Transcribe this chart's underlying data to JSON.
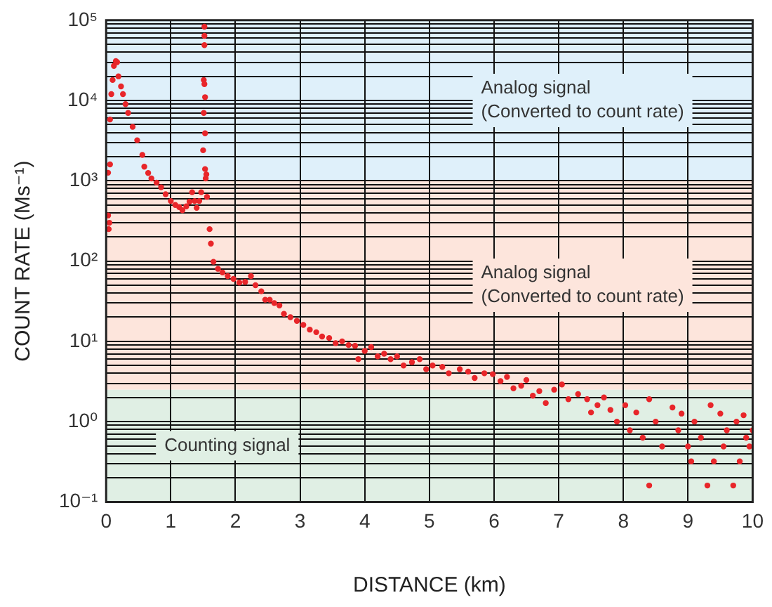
{
  "chart_data": {
    "type": "scatter",
    "xlabel": "DISTANCE (km)",
    "ylabel": "COUNT RATE (Ms⁻¹)",
    "log": "y",
    "grid": true,
    "legend": false,
    "marker": "circle",
    "xlim": [
      0,
      10
    ],
    "xticks": [
      0,
      1,
      2,
      3,
      4,
      5,
      6,
      7,
      8,
      9,
      10
    ],
    "ylim": [
      0.1,
      100000
    ],
    "yticks": [
      {
        "value": 0.1,
        "label": "10⁻¹"
      },
      {
        "value": 0.2,
        "label": null
      },
      {
        "value": 0.3,
        "label": null
      },
      {
        "value": 0.4,
        "label": null
      },
      {
        "value": 0.5,
        "label": null
      },
      {
        "value": 0.6,
        "label": null
      },
      {
        "value": 0.7,
        "label": null
      },
      {
        "value": 0.8,
        "label": null
      },
      {
        "value": 0.9,
        "label": null
      },
      {
        "value": 1,
        "label": "10⁰"
      },
      {
        "value": 2,
        "label": null
      },
      {
        "value": 3,
        "label": null
      },
      {
        "value": 4,
        "label": null
      },
      {
        "value": 5,
        "label": null
      },
      {
        "value": 6,
        "label": null
      },
      {
        "value": 7,
        "label": null
      },
      {
        "value": 8,
        "label": null
      },
      {
        "value": 9,
        "label": null
      },
      {
        "value": 10,
        "label": "10¹"
      },
      {
        "value": 20,
        "label": null
      },
      {
        "value": 30,
        "label": null
      },
      {
        "value": 40,
        "label": null
      },
      {
        "value": 50,
        "label": null
      },
      {
        "value": 60,
        "label": null
      },
      {
        "value": 70,
        "label": null
      },
      {
        "value": 80,
        "label": null
      },
      {
        "value": 90,
        "label": null
      },
      {
        "value": 100,
        "label": "10²"
      },
      {
        "value": 200,
        "label": null
      },
      {
        "value": 300,
        "label": null
      },
      {
        "value": 400,
        "label": null
      },
      {
        "value": 500,
        "label": null
      },
      {
        "value": 600,
        "label": null
      },
      {
        "value": 700,
        "label": null
      },
      {
        "value": 800,
        "label": null
      },
      {
        "value": 900,
        "label": null
      },
      {
        "value": 1000,
        "label": "10³"
      },
      {
        "value": 2000,
        "label": null
      },
      {
        "value": 3000,
        "label": null
      },
      {
        "value": 4000,
        "label": null
      },
      {
        "value": 5000,
        "label": null
      },
      {
        "value": 6000,
        "label": null
      },
      {
        "value": 7000,
        "label": null
      },
      {
        "value": 8000,
        "label": null
      },
      {
        "value": 9000,
        "label": null
      },
      {
        "value": 10000,
        "label": "10⁴"
      },
      {
        "value": 20000,
        "label": null
      },
      {
        "value": 30000,
        "label": null
      },
      {
        "value": 40000,
        "label": null
      },
      {
        "value": 50000,
        "label": null
      },
      {
        "value": 60000,
        "label": null
      },
      {
        "value": 70000,
        "label": null
      },
      {
        "value": 80000,
        "label": null
      },
      {
        "value": 90000,
        "label": null
      },
      {
        "value": 100000,
        "label": "10⁵"
      }
    ],
    "bands": [
      {
        "axis": "y",
        "from": 1000,
        "to": 100000,
        "label": "Analog signal\n(Converted to count rate)",
        "color": "#dff0fa"
      },
      {
        "axis": "y",
        "from": 2.5,
        "to": 1000,
        "label": "Analog signal\n(Converted to count rate)",
        "color": "#fde5dc"
      },
      {
        "axis": "y",
        "from": 0.1,
        "to": 2.5,
        "label": "Counting signal",
        "color": "#e0efe4"
      }
    ],
    "series": [
      {
        "color": "#e8262a",
        "x": [
          0.03,
          0.03,
          0.04,
          0.05,
          0.06,
          0.06,
          0.08,
          0.1,
          0.12,
          0.15,
          0.17,
          0.19,
          0.23,
          0.26,
          0.3,
          0.34,
          0.41,
          0.48,
          0.56,
          0.59,
          0.65,
          0.7,
          0.78,
          0.85,
          0.92,
          1.0,
          1.07,
          1.13,
          1.18,
          1.24,
          1.29,
          1.33,
          1.37,
          1.4,
          1.44,
          1.47,
          1.52,
          1.52,
          1.52,
          1.51,
          1.52,
          1.53,
          1.51,
          1.53,
          1.5,
          1.53,
          1.54,
          1.55,
          1.56,
          1.6,
          1.62,
          1.66,
          1.73,
          1.8,
          1.88,
          1.97,
          2.06,
          2.15,
          2.24,
          2.31,
          2.4,
          2.46,
          2.53,
          2.6,
          2.68,
          2.75,
          2.85,
          2.95,
          3.05,
          3.15,
          3.25,
          3.34,
          3.45,
          3.55,
          3.65,
          3.75,
          3.85,
          3.9,
          4.0,
          4.1,
          4.2,
          4.3,
          4.4,
          4.5,
          4.6,
          4.73,
          4.85,
          4.95,
          5.05,
          5.2,
          5.3,
          5.47,
          5.6,
          5.7,
          5.85,
          5.98,
          6.1,
          6.2,
          6.3,
          6.42,
          6.5,
          6.6,
          6.7,
          6.8,
          6.93,
          7.05,
          7.15,
          7.3,
          7.44,
          7.5,
          7.6,
          7.7,
          7.8,
          7.9,
          8.03,
          8.1,
          8.2,
          8.3,
          8.4,
          8.4,
          8.5,
          8.6,
          8.76,
          8.85,
          8.9,
          9.0,
          9.05,
          9.1,
          9.2,
          9.3,
          9.35,
          9.4,
          9.5,
          9.55,
          9.6,
          9.7,
          9.75,
          9.8,
          9.86,
          9.9,
          9.95,
          10
        ],
        "values": [
          1260,
          370,
          250,
          300,
          1600,
          5800,
          12000,
          18000,
          27000,
          31000,
          30000,
          20000,
          15000,
          12000,
          9000,
          7000,
          4700,
          3200,
          2100,
          1500,
          1250,
          1070,
          950,
          830,
          680,
          560,
          500,
          470,
          430,
          480,
          550,
          720,
          560,
          460,
          560,
          720,
          83000,
          64000,
          49000,
          18000,
          16000,
          11000,
          7000,
          3900,
          2400,
          1400,
          1070,
          1200,
          630,
          250,
          165,
          98,
          80,
          72,
          65,
          60,
          54,
          55,
          65,
          50,
          42,
          33,
          33,
          30,
          28,
          22,
          20,
          18,
          16,
          14,
          13,
          11.5,
          11,
          9.5,
          10,
          9,
          8.8,
          6,
          7.6,
          8.5,
          6.5,
          7,
          6,
          6.5,
          5,
          5.5,
          6,
          4.5,
          5,
          4.8,
          4,
          4.5,
          4.2,
          3.5,
          4,
          3.9,
          3.2,
          3.6,
          2.6,
          2.8,
          3.3,
          2.1,
          2.4,
          1.7,
          2.5,
          2.9,
          1.9,
          2.2,
          1.9,
          1.3,
          1.6,
          2.0,
          1.4,
          1.0,
          1.6,
          0.78,
          1.3,
          0.63,
          1.9,
          0.16,
          1.0,
          0.49,
          1.5,
          0.78,
          1.26,
          0.49,
          0.32,
          1.0,
          0.63,
          0.16,
          1.6,
          0.32,
          1.26,
          0.49,
          0.78,
          0.16,
          1.0,
          0.32,
          1.2,
          0.63,
          0.49,
          0.78
        ]
      }
    ]
  }
}
